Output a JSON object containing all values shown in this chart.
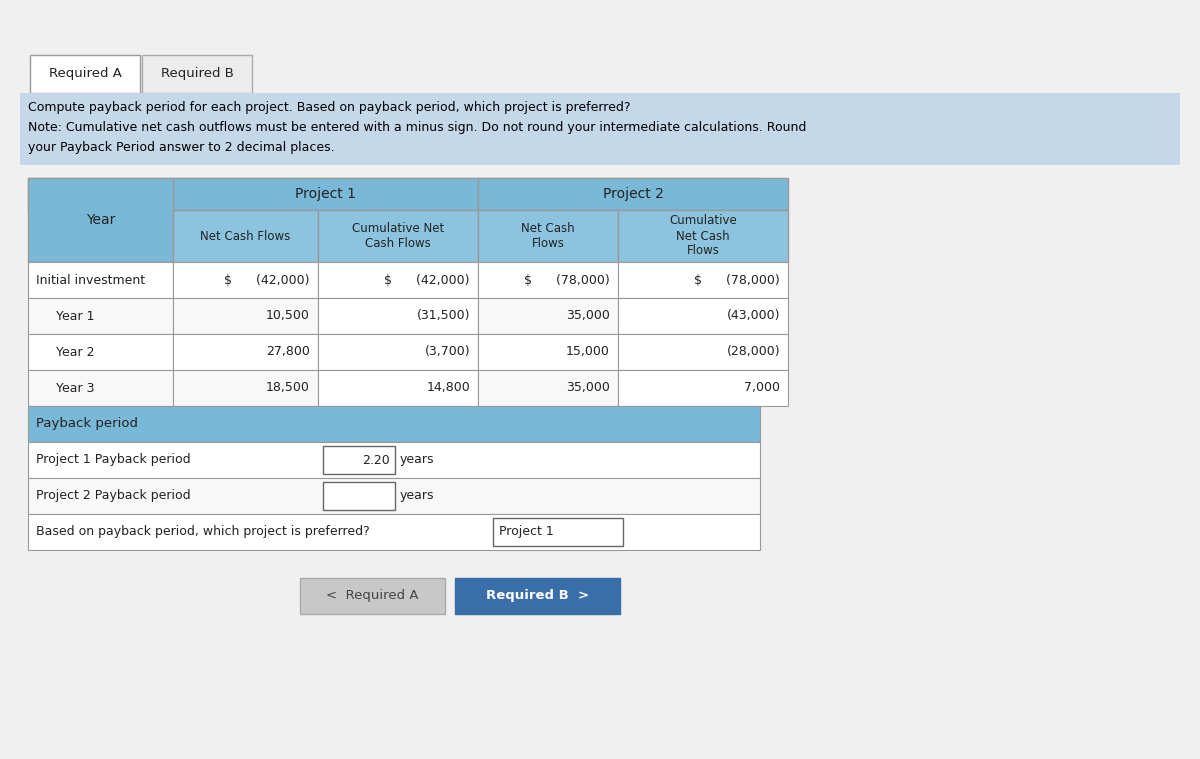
{
  "bg_color": "#e8e8e8",
  "page_bg": "#f0f0f0",
  "tab_a_bg": "#ffffff",
  "tab_b_bg": "#ececec",
  "tab_border": "#aaaaaa",
  "required_a_text": "Required A",
  "required_b_text": "Required B",
  "instruction_line1": "Compute payback period for each project. Based on payback period, which project is preferred?",
  "instruction_line2": "Note: Cumulative net cash outflows must be entered with a minus sign. Do not round your intermediate calculations. Round",
  "instruction_line3": "your Payback Period answer to 2 decimal places.",
  "instruction_bg": "#c5d8ea",
  "table_outer_bg": "#6aaad4",
  "table_header_bg": "#7ab8d8",
  "table_subheader_bg": "#8cc4e0",
  "table_data_bg": "#ffffff",
  "table_alt_bg": "#f8f8f8",
  "table_border": "#999999",
  "payback_row_bg": "#7ab8d8",
  "input_box_bg": "#ffffff",
  "input_box_border": "#666666",
  "btn_reqA_bg": "#c8c8c8",
  "btn_reqB_bg": "#3a6ea8",
  "btn_reqB_text": "#ffffff",
  "btn_reqA_text": "#444444",
  "project1_label": "Project 1",
  "project2_label": "Project 2",
  "rows": [
    {
      "label": "Initial investment",
      "p1_ncf": "$      (42,000)",
      "p1_ccf": "$      (42,000)",
      "p2_ncf": "$      (78,000)",
      "p2_ccf": "$      (78,000)"
    },
    {
      "label": "Year 1",
      "p1_ncf": "10,500",
      "p1_ccf": "(31,500)",
      "p2_ncf": "35,000",
      "p2_ccf": "(43,000)"
    },
    {
      "label": "Year 2",
      "p1_ncf": "27,800",
      "p1_ccf": "(3,700)",
      "p2_ncf": "15,000",
      "p2_ccf": "(28,000)"
    },
    {
      "label": "Year 3",
      "p1_ncf": "18,500",
      "p1_ccf": "14,800",
      "p2_ncf": "35,000",
      "p2_ccf": "7,000"
    }
  ],
  "payback_period_label": "Payback period",
  "proj1_payback_label": "Project 1 Payback period",
  "proj2_payback_label": "Project 2 Payback period",
  "proj1_payback_value": "2.20",
  "proj1_payback_unit": "years",
  "proj2_payback_unit": "years",
  "preferred_label": "Based on payback period, which project is preferred?",
  "preferred_answer": "Project 1",
  "nav_left": "<  Required A",
  "nav_right": "Required B  >"
}
